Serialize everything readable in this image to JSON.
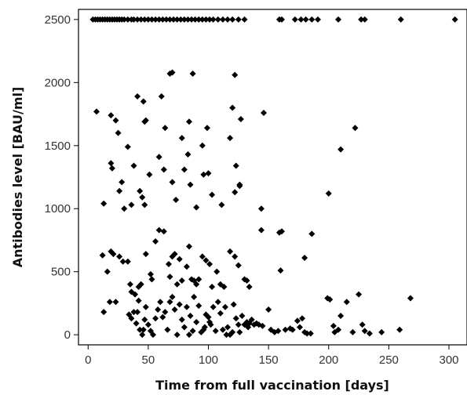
{
  "chart_data": {
    "type": "scatter",
    "title": "",
    "xlabel": "Time from full vaccination [days]",
    "ylabel": "Antibodies level [BAU/ml]",
    "xlim": [
      -8,
      315
    ],
    "ylim": [
      -80,
      2580
    ],
    "x_ticks": [
      0,
      50,
      100,
      150,
      200,
      250,
      300
    ],
    "y_ticks": [
      0,
      500,
      1000,
      1500,
      2000,
      2500
    ],
    "x_tick_labels": [
      "0",
      "50",
      "100",
      "150",
      "200",
      "250",
      "300"
    ],
    "y_tick_labels": [
      "0",
      "500",
      "1000",
      "1500",
      "2000",
      "2500"
    ],
    "grid": false,
    "legend": "none",
    "marker": "diamond",
    "marker_color": "#000000",
    "points": [
      [
        4,
        2500
      ],
      [
        6,
        2500
      ],
      [
        8,
        2500
      ],
      [
        10,
        2500
      ],
      [
        12,
        2500
      ],
      [
        14,
        2500
      ],
      [
        16,
        2500
      ],
      [
        18,
        2500
      ],
      [
        20,
        2500
      ],
      [
        22,
        2500
      ],
      [
        24,
        2500
      ],
      [
        26,
        2500
      ],
      [
        28,
        2500
      ],
      [
        30,
        2500
      ],
      [
        33,
        2500
      ],
      [
        36,
        2500
      ],
      [
        38,
        2500
      ],
      [
        41,
        2500
      ],
      [
        44,
        2500
      ],
      [
        47,
        2500
      ],
      [
        50,
        2500
      ],
      [
        53,
        2500
      ],
      [
        56,
        2500
      ],
      [
        59,
        2500
      ],
      [
        62,
        2500
      ],
      [
        65,
        2500
      ],
      [
        68,
        2500
      ],
      [
        71,
        2500
      ],
      [
        74,
        2500
      ],
      [
        77,
        2500
      ],
      [
        80,
        2500
      ],
      [
        83,
        2500
      ],
      [
        86,
        2500
      ],
      [
        89,
        2500
      ],
      [
        92,
        2500
      ],
      [
        95,
        2500
      ],
      [
        98,
        2500
      ],
      [
        101,
        2500
      ],
      [
        104,
        2500
      ],
      [
        108,
        2500
      ],
      [
        112,
        2500
      ],
      [
        116,
        2500
      ],
      [
        120,
        2500
      ],
      [
        125,
        2500
      ],
      [
        130,
        2500
      ],
      [
        159,
        2500
      ],
      [
        161,
        2500
      ],
      [
        172,
        2500
      ],
      [
        177,
        2500
      ],
      [
        181,
        2500
      ],
      [
        186,
        2500
      ],
      [
        191,
        2500
      ],
      [
        208,
        2500
      ],
      [
        227,
        2500
      ],
      [
        230,
        2500
      ],
      [
        260,
        2500
      ],
      [
        305,
        2500
      ],
      [
        7,
        1770
      ],
      [
        19,
        1740
      ],
      [
        23,
        1700
      ],
      [
        25,
        1600
      ],
      [
        19,
        1360
      ],
      [
        20,
        1320
      ],
      [
        33,
        1490
      ],
      [
        28,
        1210
      ],
      [
        41,
        1890
      ],
      [
        46,
        1850
      ],
      [
        48,
        1700
      ],
      [
        47,
        1690
      ],
      [
        61,
        1890
      ],
      [
        68,
        2070
      ],
      [
        70,
        2080
      ],
      [
        87,
        2070
      ],
      [
        122,
        2060
      ],
      [
        64,
        1640
      ],
      [
        78,
        1560
      ],
      [
        84,
        1690
      ],
      [
        95,
        1500
      ],
      [
        99,
        1640
      ],
      [
        120,
        1800
      ],
      [
        118,
        1560
      ],
      [
        127,
        1710
      ],
      [
        146,
        1760
      ],
      [
        222,
        1640
      ],
      [
        13,
        1040
      ],
      [
        26,
        1140
      ],
      [
        30,
        1000
      ],
      [
        36,
        1030
      ],
      [
        38,
        1340
      ],
      [
        43,
        1140
      ],
      [
        45,
        1090
      ],
      [
        47,
        1030
      ],
      [
        51,
        1270
      ],
      [
        59,
        1410
      ],
      [
        63,
        1310
      ],
      [
        70,
        1210
      ],
      [
        73,
        1070
      ],
      [
        80,
        1310
      ],
      [
        83,
        1430
      ],
      [
        85,
        1190
      ],
      [
        90,
        1010
      ],
      [
        96,
        1270
      ],
      [
        100,
        1280
      ],
      [
        103,
        1110
      ],
      [
        111,
        1030
      ],
      [
        122,
        1130
      ],
      [
        123,
        1340
      ],
      [
        126,
        1190
      ],
      [
        144,
        1000
      ],
      [
        126,
        1180
      ],
      [
        200,
        1120
      ],
      [
        210,
        1470
      ],
      [
        12,
        630
      ],
      [
        16,
        500
      ],
      [
        19,
        660
      ],
      [
        21,
        640
      ],
      [
        26,
        620
      ],
      [
        29,
        580
      ],
      [
        33,
        580
      ],
      [
        35,
        400
      ],
      [
        36,
        340
      ],
      [
        39,
        320
      ],
      [
        42,
        380
      ],
      [
        44,
        400
      ],
      [
        48,
        640
      ],
      [
        52,
        480
      ],
      [
        53,
        440
      ],
      [
        56,
        740
      ],
      [
        59,
        830
      ],
      [
        63,
        820
      ],
      [
        67,
        560
      ],
      [
        68,
        460
      ],
      [
        70,
        620
      ],
      [
        72,
        640
      ],
      [
        74,
        400
      ],
      [
        76,
        600
      ],
      [
        78,
        430
      ],
      [
        82,
        540
      ],
      [
        84,
        700
      ],
      [
        86,
        440
      ],
      [
        88,
        430
      ],
      [
        90,
        400
      ],
      [
        92,
        440
      ],
      [
        95,
        620
      ],
      [
        98,
        590
      ],
      [
        101,
        560
      ],
      [
        103,
        380
      ],
      [
        107,
        500
      ],
      [
        110,
        400
      ],
      [
        113,
        380
      ],
      [
        118,
        660
      ],
      [
        122,
        620
      ],
      [
        125,
        550
      ],
      [
        130,
        440
      ],
      [
        132,
        430
      ],
      [
        134,
        380
      ],
      [
        144,
        830
      ],
      [
        159,
        810
      ],
      [
        161,
        820
      ],
      [
        160,
        510
      ],
      [
        180,
        610
      ],
      [
        186,
        800
      ],
      [
        13,
        180
      ],
      [
        18,
        260
      ],
      [
        23,
        260
      ],
      [
        34,
        160
      ],
      [
        36,
        130
      ],
      [
        38,
        180
      ],
      [
        40,
        90
      ],
      [
        41,
        180
      ],
      [
        42,
        270
      ],
      [
        43,
        40
      ],
      [
        45,
        0
      ],
      [
        46,
        40
      ],
      [
        47,
        120
      ],
      [
        48,
        220
      ],
      [
        50,
        80
      ],
      [
        52,
        30
      ],
      [
        54,
        0
      ],
      [
        56,
        130
      ],
      [
        58,
        200
      ],
      [
        60,
        260
      ],
      [
        62,
        140
      ],
      [
        64,
        180
      ],
      [
        66,
        40
      ],
      [
        68,
        260
      ],
      [
        70,
        300
      ],
      [
        72,
        200
      ],
      [
        74,
        0
      ],
      [
        76,
        240
      ],
      [
        78,
        120
      ],
      [
        80,
        60
      ],
      [
        82,
        220
      ],
      [
        84,
        0
      ],
      [
        85,
        150
      ],
      [
        87,
        30
      ],
      [
        88,
        300
      ],
      [
        90,
        100
      ],
      [
        92,
        230
      ],
      [
        94,
        20
      ],
      [
        96,
        40
      ],
      [
        97,
        60
      ],
      [
        98,
        160
      ],
      [
        100,
        140
      ],
      [
        101,
        100
      ],
      [
        102,
        80
      ],
      [
        104,
        220
      ],
      [
        106,
        30
      ],
      [
        108,
        260
      ],
      [
        110,
        170
      ],
      [
        112,
        40
      ],
      [
        114,
        220
      ],
      [
        115,
        0
      ],
      [
        116,
        60
      ],
      [
        118,
        0
      ],
      [
        120,
        20
      ],
      [
        121,
        240
      ],
      [
        123,
        130
      ],
      [
        125,
        80
      ],
      [
        126,
        20
      ],
      [
        128,
        150
      ],
      [
        130,
        80
      ],
      [
        132,
        100
      ],
      [
        133,
        60
      ],
      [
        134,
        90
      ],
      [
        136,
        120
      ],
      [
        138,
        80
      ],
      [
        140,
        90
      ],
      [
        142,
        80
      ],
      [
        145,
        70
      ],
      [
        150,
        200
      ],
      [
        152,
        40
      ],
      [
        155,
        20
      ],
      [
        158,
        30
      ],
      [
        164,
        40
      ],
      [
        168,
        50
      ],
      [
        170,
        40
      ],
      [
        174,
        110
      ],
      [
        176,
        60
      ],
      [
        178,
        130
      ],
      [
        180,
        20
      ],
      [
        182,
        10
      ],
      [
        185,
        10
      ],
      [
        199,
        290
      ],
      [
        201,
        280
      ],
      [
        204,
        70
      ],
      [
        205,
        20
      ],
      [
        208,
        40
      ],
      [
        210,
        150
      ],
      [
        215,
        260
      ],
      [
        220,
        20
      ],
      [
        225,
        320
      ],
      [
        228,
        80
      ],
      [
        230,
        30
      ],
      [
        234,
        10
      ],
      [
        244,
        20
      ],
      [
        259,
        40
      ],
      [
        268,
        290
      ]
    ]
  }
}
